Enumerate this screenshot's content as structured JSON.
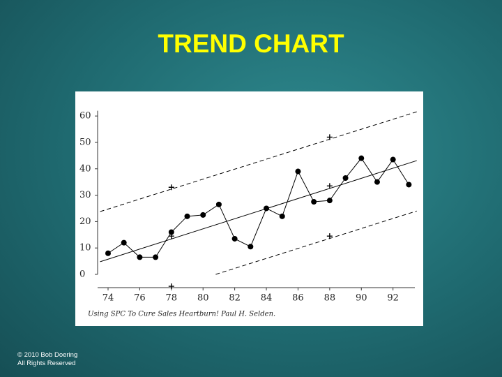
{
  "chart_data": {
    "type": "line",
    "title": "TREND CHART",
    "caption": "Using SPC To Cure Sales Heartburn! Paul H. Selden.",
    "xlim": [
      73.34,
      93.6
    ],
    "xticks": [
      74,
      76,
      78,
      80,
      82,
      84,
      86,
      88,
      90,
      92
    ],
    "ylim": [
      0,
      62
    ],
    "yticks": [
      0,
      10,
      20,
      30,
      40,
      50,
      60
    ],
    "series": [
      {
        "style": "points",
        "color": "#000000",
        "x": [
          74,
          75,
          76,
          77,
          78,
          79,
          80,
          81,
          82,
          83,
          84,
          85,
          86,
          87,
          88,
          89,
          90,
          91,
          92,
          93
        ],
        "values": [
          8,
          12,
          6.5,
          6.5,
          16,
          22,
          22.5,
          26.5,
          13.5,
          10.5,
          25,
          22,
          39,
          27.5,
          28,
          36.5,
          44,
          35,
          43.5,
          34
        ]
      },
      {
        "style": "solid",
        "color": "#000000",
        "x": [
          73.5,
          93.5
        ],
        "values": [
          4.8,
          43.1
        ]
      },
      {
        "style": "dashed",
        "color": "#000000",
        "x": [
          73.5,
          93.5
        ],
        "values": [
          23.8,
          61.6
        ]
      },
      {
        "style": "dashed",
        "color": "#000000",
        "x": [
          80.8,
          93.5
        ],
        "values": [
          0,
          24
        ]
      },
      {
        "style": "plus",
        "color": "#000000",
        "x": [
          78,
          78,
          78,
          88,
          88,
          88
        ],
        "values": [
          33,
          14.5,
          -4.5,
          52,
          33.5,
          14.5
        ]
      }
    ]
  },
  "footer": {
    "line1": "© 2010  Bob Doering",
    "line2": "All Rights Reserved"
  }
}
